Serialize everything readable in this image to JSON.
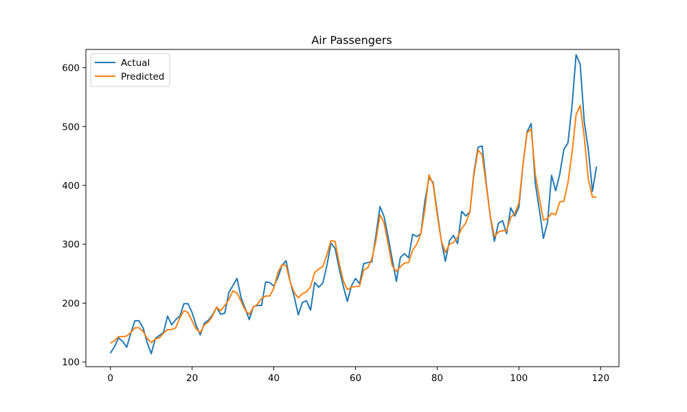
{
  "chart_data": {
    "type": "line",
    "title": "Air Passengers",
    "xlabel": "",
    "ylabel": "",
    "xlim": [
      -6,
      124.5
    ],
    "ylim": [
      92,
      631
    ],
    "x_ticks": [
      0,
      20,
      40,
      60,
      80,
      100,
      120
    ],
    "y_ticks": [
      100,
      200,
      300,
      400,
      500,
      600
    ],
    "grid": false,
    "legend_position": "top-left",
    "series": [
      {
        "name": "Actual",
        "color": "#1f77b4",
        "values": [
          115,
          126,
          141,
          135,
          125,
          149,
          170,
          170,
          158,
          133,
          114,
          140,
          145,
          150,
          178,
          163,
          172,
          178,
          199,
          199,
          184,
          162,
          146,
          166,
          171,
          180,
          193,
          181,
          183,
          218,
          230,
          242,
          209,
          191,
          172,
          194,
          196,
          196,
          236,
          235,
          229,
          243,
          264,
          272,
          237,
          211,
          180,
          201,
          204,
          188,
          235,
          227,
          234,
          264,
          302,
          293,
          259,
          229,
          203,
          229,
          242,
          233,
          267,
          269,
          270,
          315,
          364,
          347,
          312,
          274,
          237,
          278,
          284,
          277,
          317,
          313,
          318,
          374,
          413,
          405,
          355,
          306,
          271,
          306,
          315,
          301,
          356,
          348,
          355,
          422,
          465,
          467,
          404,
          347,
          305,
          336,
          340,
          318,
          362,
          348,
          363,
          435,
          491,
          505,
          404,
          359,
          310,
          337,
          417,
          391,
          419,
          461,
          472,
          535,
          622,
          606,
          508,
          461,
          390,
          432
        ]
      },
      {
        "name": "Predicted",
        "color": "#ff7f0e",
        "values": [
          132,
          136,
          143,
          143,
          144,
          150,
          158,
          158,
          152,
          140,
          133,
          139,
          141,
          149,
          155,
          155,
          158,
          175,
          187,
          184,
          170,
          156,
          150,
          163,
          168,
          178,
          193,
          187,
          196,
          206,
          221,
          217,
          203,
          188,
          181,
          193,
          198,
          208,
          212,
          212,
          225,
          252,
          265,
          264,
          236,
          218,
          209,
          216,
          219,
          228,
          252,
          258,
          262,
          282,
          306,
          305,
          268,
          238,
          223,
          227,
          228,
          229,
          256,
          260,
          275,
          306,
          350,
          336,
          300,
          263,
          254,
          262,
          268,
          269,
          290,
          300,
          318,
          360,
          418,
          402,
          350,
          306,
          286,
          300,
          303,
          312,
          327,
          336,
          355,
          418,
          460,
          452,
          400,
          348,
          313,
          321,
          323,
          323,
          346,
          352,
          370,
          436,
          489,
          496,
          420,
          379,
          341,
          344,
          353,
          350,
          372,
          373,
          404,
          455,
          520,
          536,
          482,
          410,
          380,
          380
        ]
      }
    ]
  }
}
